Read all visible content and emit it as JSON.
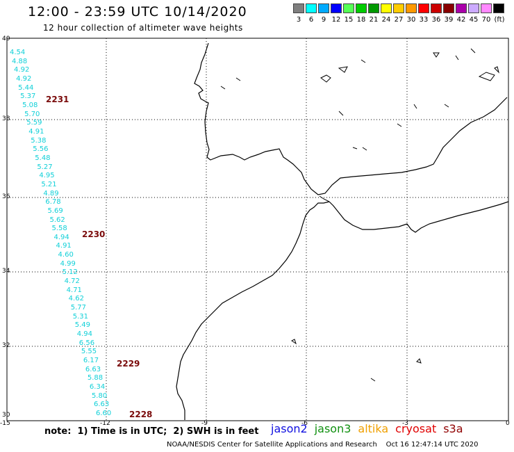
{
  "header": {
    "title": "12:00 - 23:59 UTC 10/14/2020",
    "subtitle": "12 hour collection of altimeter wave heights"
  },
  "legend": {
    "swatches": [
      {
        "color": "#7f7f7f",
        "label": "3"
      },
      {
        "color": "#00ffff",
        "label": "6"
      },
      {
        "color": "#00aaff",
        "label": "9"
      },
      {
        "color": "#0000ff",
        "label": "12"
      },
      {
        "color": "#55ff55",
        "label": "15"
      },
      {
        "color": "#00cc00",
        "label": "18"
      },
      {
        "color": "#009900",
        "label": "21"
      },
      {
        "color": "#ffff00",
        "label": "24"
      },
      {
        "color": "#ffcc00",
        "label": "27"
      },
      {
        "color": "#ff9900",
        "label": "30"
      },
      {
        "color": "#ff0000",
        "label": "33"
      },
      {
        "color": "#cc0000",
        "label": "36"
      },
      {
        "color": "#880000",
        "label": "39"
      },
      {
        "color": "#aa00aa",
        "label": "42"
      },
      {
        "color": "#ccaaff",
        "label": "45"
      },
      {
        "color": "#ff88ff",
        "label": "70"
      },
      {
        "color": "#000000",
        "label": ""
      }
    ],
    "unit": "(ft)"
  },
  "axes": {
    "lat_labels": [
      "40",
      "38",
      "36",
      "34",
      "32",
      "30"
    ],
    "lon_labels": [
      "-15",
      "-12",
      "-9",
      "-6",
      "-3",
      "0"
    ]
  },
  "wave_heights": [
    "4.54",
    "4.88",
    "4.92",
    "4.92",
    "5.44",
    "5.37",
    "5.08",
    "5.70",
    "5.59",
    "4.91",
    "5.38",
    "5.56",
    "5.48",
    "5.27",
    "4.95",
    "5.21",
    "4.89",
    "6.78",
    "5.69",
    "5.62",
    "5.58",
    "4.94",
    "4.91",
    "4.60",
    "4.99",
    "5.12",
    "4.72",
    "4.71",
    "4.62",
    "5.77",
    "5.31",
    "5.49",
    "4.94",
    "6.56",
    "5.55",
    "6.17",
    "6.63",
    "5.88",
    "6.34",
    "5.80",
    "6.63",
    "6.60"
  ],
  "wave_color": "#10d0d8",
  "times": [
    "2231",
    "2230",
    "2229",
    "2228"
  ],
  "time_color": "#7a0a0a",
  "footer": {
    "note": "note:  1) Time is in UTC;  2) SWH is in feet",
    "satellites": [
      {
        "name": "jason2",
        "color": "#1010e0"
      },
      {
        "name": "jason3",
        "color": "#109010"
      },
      {
        "name": "altika",
        "color": "#f0a000"
      },
      {
        "name": "cryosat",
        "color": "#e00000"
      },
      {
        "name": "s3a",
        "color": "#900000"
      }
    ],
    "credit": "NOAA/NESDIS Center for Satellite Applications and Research    Oct 16 12:47:14 UTC 2020"
  }
}
